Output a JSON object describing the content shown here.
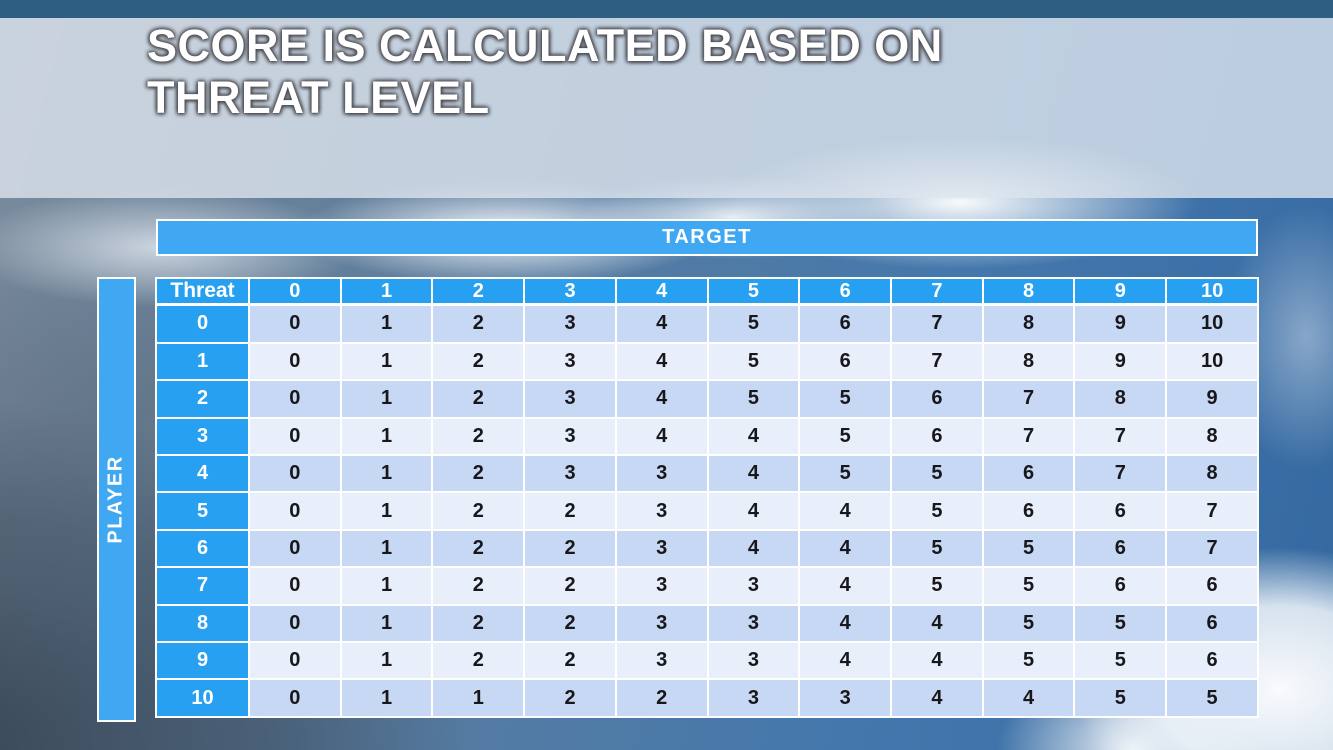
{
  "slide": {
    "title_lines": [
      "SCORE IS CALCULATED BASED ON",
      "THREAT LEVEL"
    ]
  },
  "matrix": {
    "target_label": "TARGET",
    "player_label": "PLAYER",
    "corner_label": "Threat",
    "column_headers": [
      "0",
      "1",
      "2",
      "3",
      "4",
      "5",
      "6",
      "7",
      "8",
      "9",
      "10"
    ],
    "rows": [
      {
        "threat": "0",
        "values": [
          "0",
          "1",
          "2",
          "3",
          "4",
          "5",
          "6",
          "7",
          "8",
          "9",
          "10"
        ]
      },
      {
        "threat": "1",
        "values": [
          "0",
          "1",
          "2",
          "3",
          "4",
          "5",
          "6",
          "7",
          "8",
          "9",
          "10"
        ]
      },
      {
        "threat": "2",
        "values": [
          "0",
          "1",
          "2",
          "3",
          "4",
          "5",
          "5",
          "6",
          "7",
          "8",
          "9"
        ]
      },
      {
        "threat": "3",
        "values": [
          "0",
          "1",
          "2",
          "3",
          "4",
          "4",
          "5",
          "6",
          "7",
          "7",
          "8"
        ]
      },
      {
        "threat": "4",
        "values": [
          "0",
          "1",
          "2",
          "3",
          "3",
          "4",
          "5",
          "5",
          "6",
          "7",
          "8"
        ]
      },
      {
        "threat": "5",
        "values": [
          "0",
          "1",
          "2",
          "2",
          "3",
          "4",
          "4",
          "5",
          "6",
          "6",
          "7"
        ]
      },
      {
        "threat": "6",
        "values": [
          "0",
          "1",
          "2",
          "2",
          "3",
          "4",
          "4",
          "5",
          "5",
          "6",
          "7"
        ]
      },
      {
        "threat": "7",
        "values": [
          "0",
          "1",
          "2",
          "2",
          "3",
          "3",
          "4",
          "5",
          "5",
          "6",
          "6"
        ]
      },
      {
        "threat": "8",
        "values": [
          "0",
          "1",
          "2",
          "2",
          "3",
          "3",
          "4",
          "4",
          "5",
          "5",
          "6"
        ]
      },
      {
        "threat": "9",
        "values": [
          "0",
          "1",
          "2",
          "2",
          "3",
          "3",
          "4",
          "4",
          "5",
          "5",
          "6"
        ]
      },
      {
        "threat": "10",
        "values": [
          "0",
          "1",
          "1",
          "2",
          "2",
          "3",
          "3",
          "4",
          "4",
          "5",
          "5"
        ]
      }
    ]
  },
  "colors": {
    "header_blue": "#28a0f2",
    "bar_blue": "#40a8f2",
    "band_dark": "#c7d8f4",
    "band_light": "#e9eefb",
    "top_strip": "#2e5f82",
    "banner": "#dde5ed",
    "body_text": "#17171c"
  }
}
